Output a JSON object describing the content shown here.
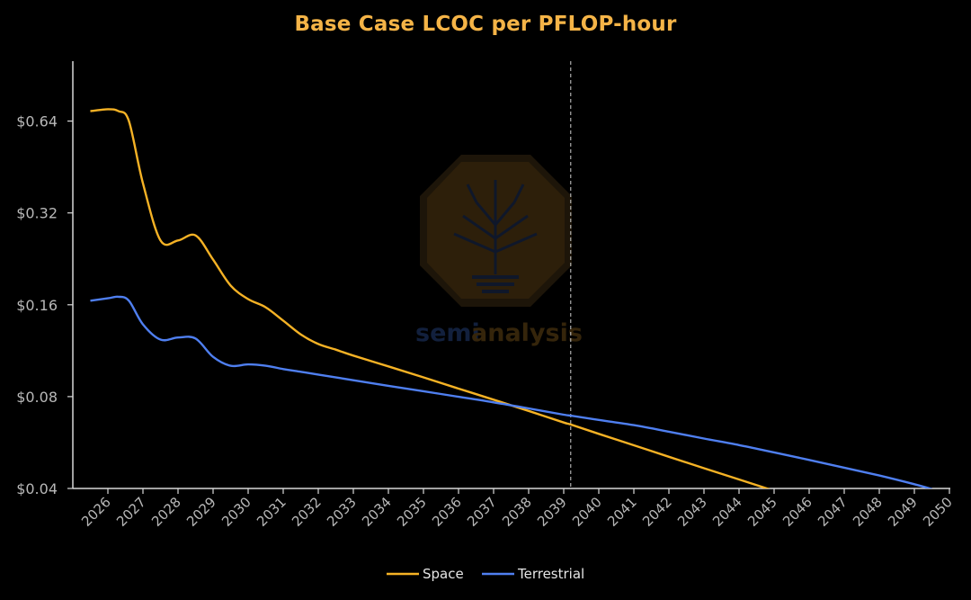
{
  "chart_data": {
    "type": "line",
    "title": "Base Case LCOC per PFLOP-hour",
    "xlabel": "",
    "ylabel": "",
    "y_scale": "log2",
    "ylim": [
      0.04,
      0.8
    ],
    "y_ticks": [
      {
        "value": 0.04,
        "label": "$0.04"
      },
      {
        "value": 0.08,
        "label": "$0.08"
      },
      {
        "value": 0.16,
        "label": "$0.16"
      },
      {
        "value": 0.32,
        "label": "$0.32"
      },
      {
        "value": 0.64,
        "label": "$0.64"
      }
    ],
    "x_tick_labels": [
      "2026",
      "2027",
      "2028",
      "2029",
      "2030",
      "2031",
      "2032",
      "2033",
      "2034",
      "2035",
      "2036",
      "2037",
      "2038",
      "2039",
      "2040",
      "2041",
      "2042",
      "2043",
      "2044",
      "2045",
      "2046",
      "2047",
      "2048",
      "2049",
      "2050"
    ],
    "vertical_marker": {
      "x": 2039.2,
      "style": "dashed"
    },
    "series": [
      {
        "name": "Space",
        "color": "#f5b225",
        "x": [
          2025.5,
          2026.0,
          2026.3,
          2026.6,
          2027.0,
          2027.5,
          2028.0,
          2028.5,
          2029.0,
          2029.5,
          2030.0,
          2030.5,
          2031.0,
          2031.5,
          2032.0,
          2032.5,
          2033.0,
          2034.0,
          2035.0,
          2036.0,
          2037.0,
          2038.0,
          2039.0,
          2039.2,
          2040.0,
          2041.0,
          2042.0,
          2043.0,
          2044.0,
          2045.0,
          2046.0,
          2046.5
        ],
        "values": [
          0.69,
          0.7,
          0.69,
          0.64,
          0.4,
          0.26,
          0.26,
          0.27,
          0.225,
          0.185,
          0.167,
          0.157,
          0.142,
          0.128,
          0.119,
          0.114,
          0.109,
          0.1005,
          0.0925,
          0.085,
          0.0782,
          0.0718,
          0.0658,
          0.0648,
          0.0604,
          0.0554,
          0.0508,
          0.0466,
          0.0428,
          0.0393,
          0.0361,
          0.0345
        ]
      },
      {
        "name": "Terrestrial",
        "color": "#4f7ff0",
        "x": [
          2025.5,
          2026.0,
          2026.3,
          2026.6,
          2027.0,
          2027.5,
          2028.0,
          2028.5,
          2029.0,
          2029.5,
          2030.0,
          2030.5,
          2031.0,
          2031.5,
          2032.0,
          2033.0,
          2034.0,
          2035.0,
          2036.0,
          2037.0,
          2038.0,
          2039.0,
          2039.2,
          2040.0,
          2041.0,
          2042.0,
          2043.0,
          2044.0,
          2045.0,
          2046.0,
          2047.0,
          2048.0,
          2049.0,
          2049.5
        ],
        "values": [
          0.165,
          0.168,
          0.17,
          0.165,
          0.138,
          0.123,
          0.125,
          0.124,
          0.108,
          0.101,
          0.102,
          0.101,
          0.0985,
          0.0965,
          0.0945,
          0.0905,
          0.0868,
          0.0833,
          0.0799,
          0.0766,
          0.0732,
          0.0698,
          0.0693,
          0.0671,
          0.0645,
          0.0614,
          0.0583,
          0.0555,
          0.0525,
          0.0496,
          0.0468,
          0.0441,
          0.0413,
          0.0398
        ]
      }
    ],
    "legend": {
      "position": "bottom-center"
    },
    "grid": false
  },
  "watermark": {
    "text_part1": "semi",
    "text_part2": "analysis",
    "icon": "tree-circuit-icon"
  }
}
